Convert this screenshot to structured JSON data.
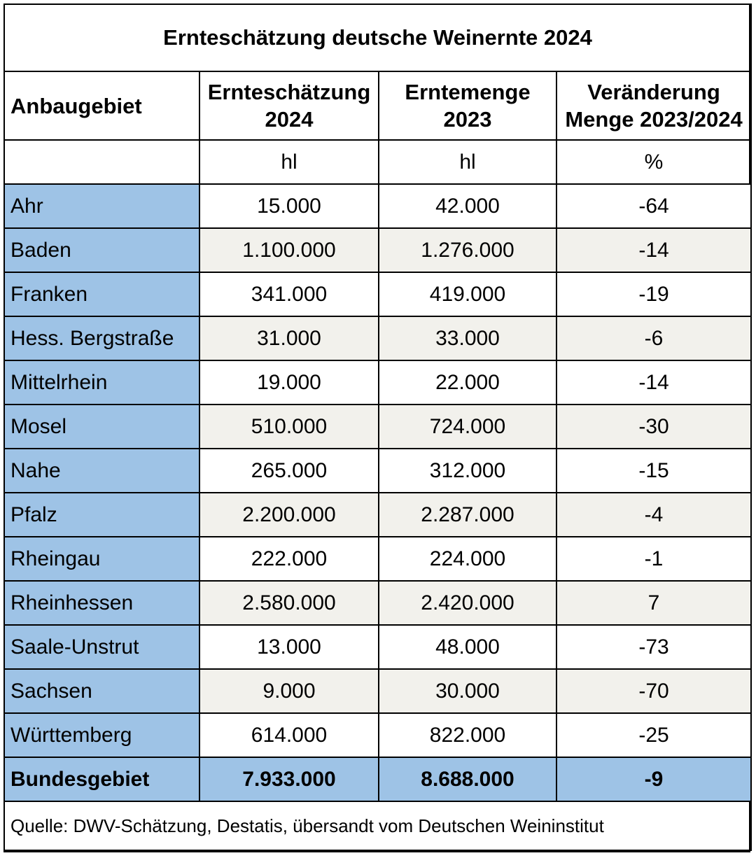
{
  "title": "Ernteschätzung deutsche Weinernte 2024",
  "headers": {
    "region": "Anbaugebiet",
    "estimate": [
      "Ernteschätzung",
      "2024"
    ],
    "harvest": [
      "Erntemenge",
      "2023"
    ],
    "change": [
      "Veränderung",
      "Menge 2023/2024"
    ]
  },
  "units": {
    "region": "",
    "estimate": "hl",
    "harvest": "hl",
    "change": "%"
  },
  "rows": [
    {
      "region": "Ahr",
      "estimate": "15.000",
      "harvest": "42.000",
      "change": "-64"
    },
    {
      "region": "Baden",
      "estimate": "1.100.000",
      "harvest": "1.276.000",
      "change": "-14"
    },
    {
      "region": "Franken",
      "estimate": "341.000",
      "harvest": "419.000",
      "change": "-19"
    },
    {
      "region": "Hess. Bergstraße",
      "estimate": "31.000",
      "harvest": "33.000",
      "change": "-6"
    },
    {
      "region": "Mittelrhein",
      "estimate": "19.000",
      "harvest": "22.000",
      "change": "-14"
    },
    {
      "region": "Mosel",
      "estimate": "510.000",
      "harvest": "724.000",
      "change": "-30"
    },
    {
      "region": "Nahe",
      "estimate": "265.000",
      "harvest": "312.000",
      "change": "-15"
    },
    {
      "region": "Pfalz",
      "estimate": "2.200.000",
      "harvest": "2.287.000",
      "change": "-4"
    },
    {
      "region": "Rheingau",
      "estimate": "222.000",
      "harvest": "224.000",
      "change": "-1"
    },
    {
      "region": "Rheinhessen",
      "estimate": "2.580.000",
      "harvest": "2.420.000",
      "change": "7"
    },
    {
      "region": "Saale-Unstrut",
      "estimate": "13.000",
      "harvest": "48.000",
      "change": "-73"
    },
    {
      "region": "Sachsen",
      "estimate": "9.000",
      "harvest": "30.000",
      "change": "-70"
    },
    {
      "region": "Württemberg",
      "estimate": "614.000",
      "harvest": "822.000",
      "change": "-25"
    }
  ],
  "total": {
    "region": "Bundesgebiet",
    "estimate": "7.933.000",
    "harvest": "8.688.000",
    "change": "-9"
  },
  "source": "Quelle: DWV-Schätzung, Destatis, übersandt vom Deutschen Weininstitut",
  "colors": {
    "region_fill": "#9ec3e6",
    "alt_row_fill": "#f2f1ec",
    "border": "#000000"
  }
}
